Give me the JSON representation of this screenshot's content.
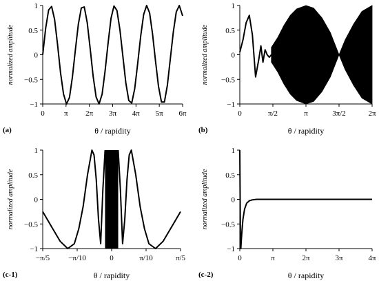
{
  "chart_data": [
    {
      "type": "line",
      "panel_label": "(a)",
      "xlabel": "θ / rapidity",
      "ylabel": "normalized amplitude",
      "xlim": [
        0,
        18.85
      ],
      "ylim": [
        -1,
        1
      ],
      "xticks": [
        0,
        3.1416,
        6.2832,
        9.4248,
        12.566,
        15.708,
        18.85
      ],
      "xticklabels": [
        "0",
        "π",
        "2π",
        "3π",
        "4π",
        "5π",
        "6π"
      ],
      "yticks": [
        -1,
        -0.5,
        0,
        0.5,
        1
      ],
      "yticklabels": [
        "−1",
        "−0.5",
        "0",
        "0.5",
        "1"
      ],
      "series": [
        {
          "style": "solid",
          "x": [
            0,
            0.4,
            0.8,
            1.2,
            1.6,
            2.0,
            2.4,
            2.8,
            3.2,
            3.6,
            4.0,
            4.4,
            4.8,
            5.2,
            5.6,
            6.0,
            6.4,
            6.8,
            7.2,
            7.6,
            8.0,
            8.4,
            8.8,
            9.2,
            9.6,
            10.0,
            10.4,
            10.8,
            11.2,
            11.6,
            12.0,
            12.4,
            12.8,
            13.2,
            13.6,
            14.0,
            14.4,
            14.8,
            15.2,
            15.6,
            16.0,
            16.4,
            16.8,
            17.2,
            17.6,
            18.0,
            18.4,
            18.85
          ],
          "y": [
            0.0,
            0.54,
            0.91,
            0.98,
            0.72,
            0.21,
            -0.36,
            -0.8,
            -1.0,
            -0.87,
            -0.45,
            0.1,
            0.62,
            0.95,
            0.97,
            0.65,
            0.12,
            -0.44,
            -0.86,
            -1.0,
            -0.8,
            -0.33,
            0.23,
            0.74,
            0.99,
            0.9,
            0.51,
            -0.03,
            -0.57,
            -0.93,
            -0.98,
            -0.69,
            -0.18,
            0.38,
            0.82,
            1.0,
            0.85,
            0.42,
            -0.13,
            -0.64,
            -0.96,
            -0.96,
            -0.62,
            -0.08,
            0.46,
            0.87,
            1.0,
            0.79
          ]
        }
      ]
    },
    {
      "type": "line",
      "panel_label": "(b)",
      "xlabel": "θ / rapidity",
      "ylabel": "normalized amplitude",
      "xlim": [
        0,
        6.2832
      ],
      "ylim": [
        -1,
        1
      ],
      "xticks": [
        0,
        1.5708,
        3.1416,
        4.7124,
        6.2832
      ],
      "xticklabels": [
        "0",
        "π/2",
        "π",
        "3π/2",
        "2π"
      ],
      "yticks": [
        -1,
        -0.5,
        0,
        0.5,
        1
      ],
      "yticklabels": [
        "−1",
        "−0.5",
        "0",
        "0.5",
        "1"
      ],
      "series": [
        {
          "style": "solid",
          "x": [
            0,
            0.15,
            0.3,
            0.45,
            0.6,
            0.75,
            0.9,
            1.0,
            1.1,
            1.2,
            1.3,
            1.4,
            1.5
          ],
          "y": [
            0.05,
            0.3,
            0.65,
            0.8,
            0.4,
            -0.45,
            -0.1,
            0.18,
            -0.15,
            0.1,
            0.0,
            -0.05,
            0.0
          ]
        }
      ],
      "envelope": {
        "x": [
          1.5,
          1.8,
          2.1,
          2.4,
          2.7,
          3.1416,
          3.5,
          3.9,
          4.3,
          4.7124,
          5.0,
          5.4,
          5.8,
          6.2832
        ],
        "upper": [
          0.15,
          0.35,
          0.6,
          0.8,
          0.93,
          1.0,
          0.95,
          0.75,
          0.45,
          0.0,
          0.3,
          0.62,
          0.88,
          1.0
        ],
        "lower": [
          -0.15,
          -0.35,
          -0.6,
          -0.8,
          -0.93,
          -1.0,
          -0.95,
          -0.75,
          -0.45,
          0.0,
          -0.3,
          -0.62,
          -0.88,
          -1.0
        ]
      }
    },
    {
      "type": "line",
      "panel_label": "(c-1)",
      "xlabel": "θ / rapidity",
      "ylabel": "normalized amplitude",
      "xlim": [
        -0.6283,
        0.6283
      ],
      "ylim": [
        -1,
        1
      ],
      "xticks": [
        -0.6283,
        -0.3142,
        0,
        0.3142,
        0.6283
      ],
      "xticklabels": [
        "−π/5",
        "−π/10",
        "0",
        "π/10",
        "π/5"
      ],
      "yticks": [
        -1,
        -0.5,
        0,
        0.5,
        1
      ],
      "yticklabels": [
        "−1",
        "−0.5",
        "0",
        "0.5",
        "1"
      ],
      "series": [
        {
          "style": "solid",
          "x": [
            -0.6283,
            -0.55,
            -0.47,
            -0.4,
            -0.34,
            -0.3,
            -0.26,
            -0.22,
            -0.18,
            -0.16,
            -0.14,
            -0.12,
            -0.1,
            -0.08,
            -0.06
          ],
          "y": [
            -0.25,
            -0.55,
            -0.85,
            -1.0,
            -0.9,
            -0.6,
            -0.15,
            0.5,
            1.0,
            0.9,
            0.4,
            -0.4,
            -0.9,
            0.2,
            1.0
          ]
        },
        {
          "style": "solid",
          "x": [
            0.06,
            0.08,
            0.1,
            0.12,
            0.14,
            0.16,
            0.18,
            0.22,
            0.26,
            0.3,
            0.34,
            0.4,
            0.47,
            0.55,
            0.6283
          ],
          "y": [
            1.0,
            0.2,
            -0.9,
            -0.4,
            0.4,
            0.9,
            1.0,
            0.5,
            -0.15,
            -0.6,
            -0.9,
            -1.0,
            -0.85,
            -0.55,
            -0.25
          ]
        }
      ],
      "filled_band": {
        "x_from": -0.06,
        "x_to": 0.06,
        "ylim": [
          -1,
          1
        ]
      }
    },
    {
      "type": "line",
      "panel_label": "(c-2)",
      "xlabel": "θ / rapidity",
      "ylabel": "normalized amplitude",
      "xlim": [
        0,
        12.566
      ],
      "ylim": [
        -1,
        1
      ],
      "xticks": [
        0,
        3.1416,
        6.2832,
        9.4248,
        12.566
      ],
      "xticklabels": [
        "0",
        "π",
        "2π",
        "3π",
        "4π"
      ],
      "yticks": [
        -1,
        -0.5,
        0,
        0.5,
        1
      ],
      "yticklabels": [
        "−1",
        "−0.5",
        "0",
        "0.5",
        "1"
      ],
      "series": [
        {
          "style": "solid",
          "x": [
            0,
            0.03,
            0.06,
            0.1,
            0.14,
            0.2,
            0.3,
            0.45,
            0.65,
            0.9,
            1.2,
            1.6,
            2.0,
            3.0,
            6.0,
            9.0,
            12.566
          ],
          "y": [
            1.0,
            0.0,
            -0.8,
            -1.0,
            -0.85,
            -0.65,
            -0.4,
            -0.2,
            -0.08,
            -0.03,
            -0.01,
            0.0,
            0.0,
            0.0,
            0.0,
            0.0,
            0.0
          ]
        }
      ]
    }
  ]
}
